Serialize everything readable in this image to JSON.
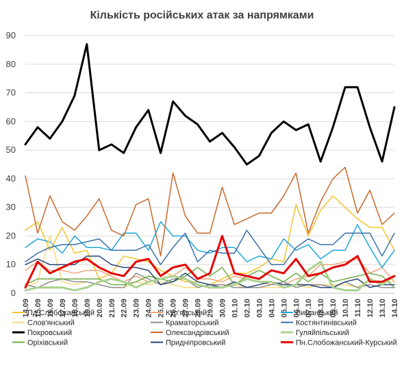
{
  "chart_data": {
    "type": "line",
    "title": "Кількість російських атак за напрямками",
    "xlabel": "",
    "ylabel": "",
    "ylim": [
      0,
      90
    ],
    "yticks": [
      0,
      10,
      20,
      30,
      40,
      50,
      60,
      70,
      80,
      90
    ],
    "grid": true,
    "legend_position": "bottom",
    "x": [
      "14.09",
      "15.09",
      "16.09",
      "17.09",
      "18.09",
      "19.09",
      "20.09",
      "21.09",
      "22.09",
      "23.09",
      "24.09",
      "25.09",
      "26.09",
      "27.09",
      "28.09",
      "29.09",
      "30.09",
      "01.10",
      "02.10",
      "03.10",
      "04.10",
      "05.10",
      "06.10",
      "07.10",
      "08.10",
      "09.10",
      "10.10",
      "11.10",
      "12.10",
      "13.10",
      "14.10"
    ],
    "series": [
      {
        "name": "Пд.Слобожанський",
        "color": "#f5c42b",
        "width": 1.5,
        "values": [
          22,
          25,
          15,
          23,
          14,
          15,
          5,
          7,
          13,
          12,
          11,
          8,
          6,
          4,
          4,
          3,
          5,
          7,
          7,
          9,
          12,
          11,
          31,
          20,
          29,
          34,
          30,
          26,
          23,
          23,
          15
        ]
      },
      {
        "name": "Куп'янський",
        "color": "#f0a47c",
        "width": 1.5,
        "values": [
          8,
          11,
          8,
          8,
          7,
          8,
          8,
          6,
          4,
          6,
          4,
          5,
          6,
          9,
          5,
          5,
          4,
          6,
          5,
          4,
          3,
          3,
          5,
          6,
          10,
          10,
          11,
          12,
          7,
          9,
          4
        ]
      },
      {
        "name": "Лиманський",
        "color": "#1ea6d9",
        "width": 1.5,
        "values": [
          16,
          19,
          18,
          14,
          20,
          16,
          16,
          15,
          21,
          21,
          15,
          25,
          20,
          20,
          15,
          14,
          16,
          16,
          11,
          13,
          12,
          19,
          15,
          17,
          12,
          15,
          15,
          24,
          16,
          9,
          15
        ]
      },
      {
        "name": "Слов'янський",
        "color": "#f8d87a",
        "width": 1.5,
        "values": [
          2,
          4,
          20,
          4,
          3,
          4,
          3,
          2,
          2,
          4,
          3,
          4,
          3,
          2,
          2,
          3,
          3,
          3,
          2,
          2,
          2,
          2,
          3,
          2,
          3,
          3,
          3,
          2,
          5,
          4,
          4
        ]
      },
      {
        "name": "Краматорський",
        "color": "#8c8c8c",
        "width": 1.5,
        "values": [
          3,
          2,
          4,
          5,
          4,
          4,
          3,
          2,
          2,
          7,
          5,
          3,
          5,
          5,
          2,
          3,
          3,
          2,
          2,
          2,
          3,
          4,
          2,
          3,
          3,
          2,
          4,
          2,
          3,
          2,
          2
        ]
      },
      {
        "name": "Костянтинівський",
        "color": "#3a6fa6",
        "width": 1.5,
        "values": [
          11,
          14,
          16,
          17,
          17,
          18,
          19,
          15,
          15,
          15,
          17,
          10,
          16,
          21,
          11,
          15,
          14,
          14,
          22,
          16,
          10,
          10,
          16,
          19,
          17,
          17,
          21,
          21,
          21,
          13,
          21
        ]
      },
      {
        "name": "Покровський",
        "color": "#000000",
        "width": 3,
        "values": [
          52,
          58,
          54,
          60,
          69,
          87,
          50,
          52,
          49,
          58,
          64,
          49,
          67,
          62,
          59,
          53,
          56,
          51,
          45,
          48,
          56,
          60,
          57,
          59,
          46,
          58,
          72,
          72,
          58,
          46,
          65
        ]
      },
      {
        "name": "Олександрівський",
        "color": "#c8682a",
        "width": 1.5,
        "values": [
          41,
          21,
          34,
          25,
          22,
          27,
          33,
          22,
          20,
          31,
          33,
          13,
          42,
          27,
          21,
          21,
          37,
          24,
          26,
          28,
          28,
          34,
          42,
          21,
          32,
          40,
          44,
          28,
          36,
          24,
          28
        ]
      },
      {
        "name": "Гуляйпільський",
        "color": "#a9d18e",
        "width": 3,
        "values": [
          1,
          2,
          2,
          2,
          1,
          2,
          4,
          5,
          4,
          2,
          4,
          5,
          6,
          5,
          3,
          2,
          2,
          3,
          5,
          4,
          4,
          2,
          3,
          8,
          11,
          2,
          1,
          1,
          5,
          3,
          6
        ]
      },
      {
        "name": "Оріхівський",
        "color": "#70ad47",
        "width": 1.5,
        "values": [
          3,
          5,
          5,
          5,
          5,
          5,
          5,
          3,
          3,
          4,
          6,
          5,
          4,
          6,
          9,
          6,
          9,
          3,
          6,
          8,
          6,
          4,
          7,
          4,
          7,
          4,
          5,
          6,
          7,
          6,
          2
        ]
      },
      {
        "name": "Придніпровський",
        "color": "#264478",
        "width": 1.5,
        "values": [
          10,
          12,
          10,
          10,
          10,
          13,
          13,
          10,
          9,
          9,
          8,
          3,
          4,
          7,
          4,
          3,
          2,
          4,
          2,
          3,
          4,
          3,
          3,
          3,
          2,
          2,
          4,
          5,
          2,
          3,
          3
        ]
      },
      {
        "name": "Пн.Слобожанський-Курський",
        "color": "#e50000",
        "width": 3,
        "values": [
          2,
          11,
          7,
          9,
          11,
          12,
          9,
          7,
          6,
          11,
          12,
          6,
          9,
          10,
          5,
          7,
          20,
          7,
          6,
          5,
          8,
          7,
          12,
          6,
          7,
          9,
          10,
          13,
          4,
          4,
          6
        ]
      }
    ]
  }
}
